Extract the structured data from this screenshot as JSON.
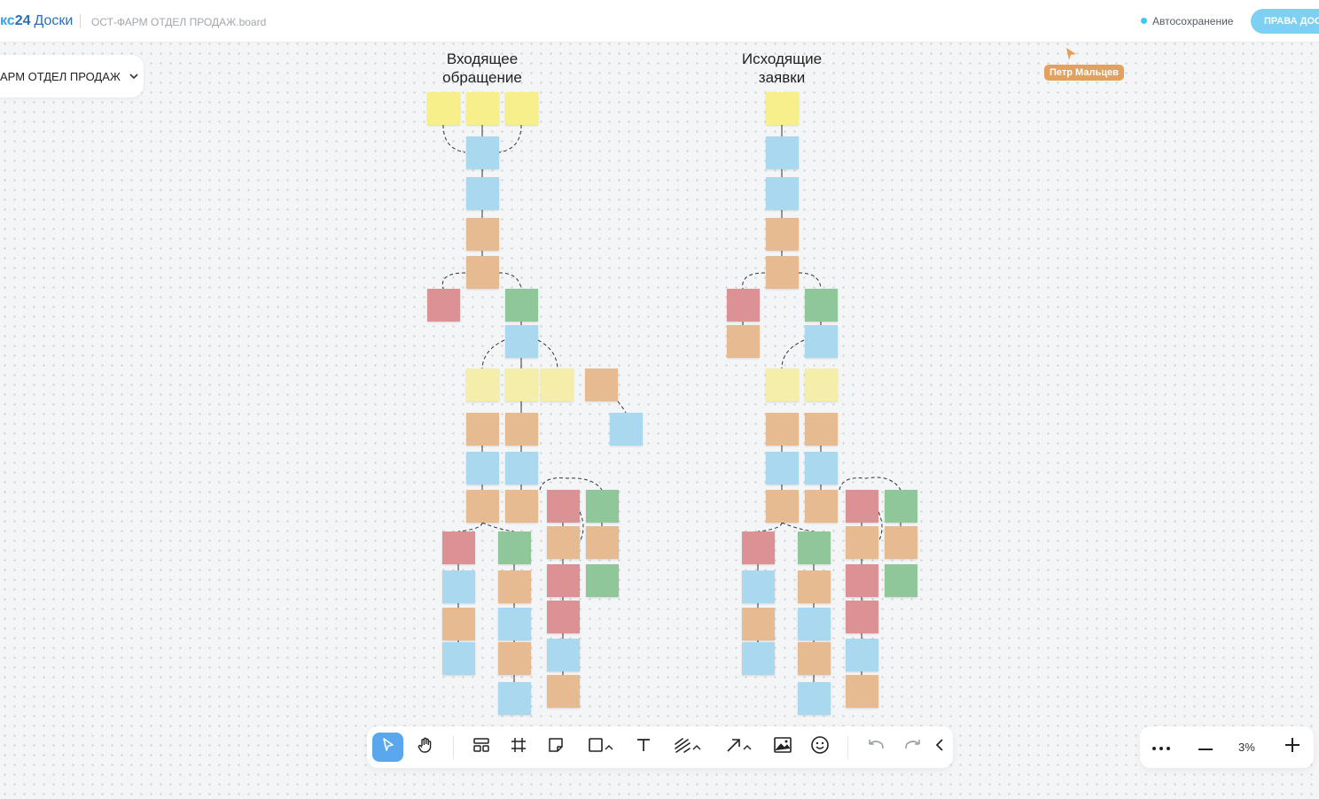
{
  "header": {
    "brand_part1": "кс",
    "brand_part2": "24",
    "brand_part3": "Доски",
    "board_name": "ОСТ-ФАРМ ОТДЕЛ ПРОДАЖ.board",
    "autosave": "Автосохранение",
    "access_button": "ПРАВА ДОСТУПА"
  },
  "board_menu": {
    "label": "АРМ ОТДЕЛ ПРОДАЖ"
  },
  "columns": {
    "incoming": {
      "title_line1": "Входящее",
      "title_line2": "обращение"
    },
    "outgoing": {
      "title_line1": "Исходящие",
      "title_line2": "заявки"
    }
  },
  "collaborator": {
    "name": "Петр Мальцев"
  },
  "toolbar": {
    "tools": [
      "select",
      "hand",
      "templates",
      "frame",
      "sticky-note",
      "shape",
      "text",
      "pen",
      "arrow",
      "image",
      "emoji",
      "undo",
      "redo",
      "collapse"
    ]
  },
  "zoom": {
    "value": "3%"
  },
  "colors": {
    "yellow": "#f6ef8c",
    "blue": "#a9d8ef",
    "orange": "#e6bb91",
    "red": "#dc9295",
    "green": "#8fc79b",
    "accent": "#5aa7ee"
  }
}
